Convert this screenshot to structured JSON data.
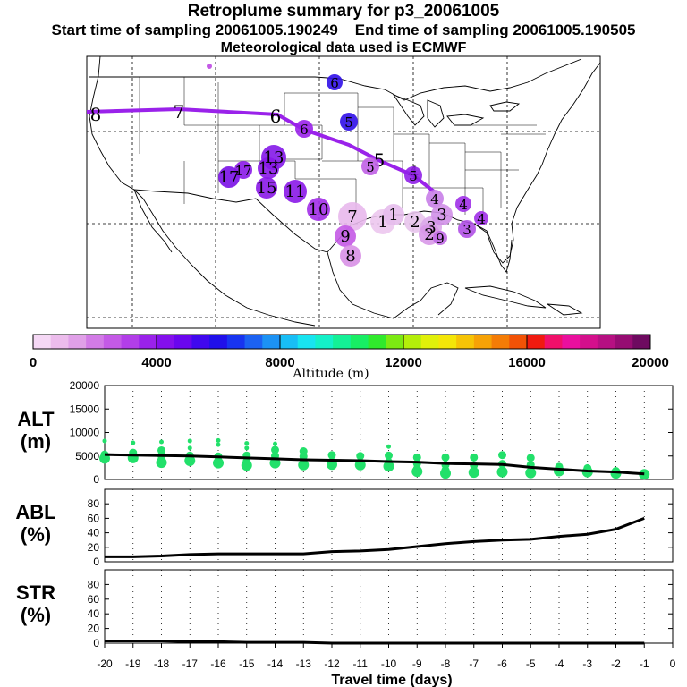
{
  "header": {
    "title": "Retroplume summary for p3_20061005",
    "start_label": "Start time of sampling",
    "start_value": "20061005.190249",
    "end_label": "End time of sampling",
    "end_value": "20061005.190505",
    "met_label": "Meteorological data used is ECMWF"
  },
  "colorbar": {
    "label": "Altitude (m)",
    "ticks": [
      "0",
      "4000",
      "8000",
      "12000",
      "16000",
      "20000"
    ],
    "colors": [
      "#f5d8f5",
      "#ecbcec",
      "#e0a0e8",
      "#d27be6",
      "#c45ae6",
      "#b23ee8",
      "#9a22ea",
      "#8410ec",
      "#6a06ee",
      "#4008ee",
      "#2010ea",
      "#1834f0",
      "#1c62f2",
      "#1c92f4",
      "#18bef6",
      "#18e4f0",
      "#14f0c8",
      "#14f096",
      "#18ee64",
      "#30ea2c",
      "#7cea12",
      "#b4ee0a",
      "#e0f00a",
      "#f4e608",
      "#f6c406",
      "#f6a206",
      "#f47c06",
      "#f25206",
      "#f01a10",
      "#f0106a",
      "#ea109e",
      "#d4108c",
      "#b61082",
      "#960c72",
      "#6e0a60"
    ]
  },
  "map": {
    "trajectory_labels": [
      "1",
      "2",
      "3",
      "4",
      "5",
      "6",
      "7",
      "8"
    ],
    "plume_labels": [
      "1",
      "2",
      "3",
      "4",
      "5",
      "6",
      "7",
      "8",
      "9",
      "10",
      "11",
      "12",
      "13",
      "14",
      "15",
      "16",
      "17"
    ]
  },
  "panels": [
    {
      "name": "ALT",
      "unit": "(m)",
      "yticks": [
        "0",
        "5000",
        "10000",
        "15000",
        "20000"
      ],
      "ymax": 20000
    },
    {
      "name": "ABL",
      "unit": "(%)",
      "yticks": [
        "0",
        "20",
        "40",
        "60",
        "80"
      ],
      "ymax": 100
    },
    {
      "name": "STR",
      "unit": "(%)",
      "yticks": [
        "0",
        "20",
        "40",
        "60",
        "80"
      ],
      "ymax": 100
    }
  ],
  "xaxis": {
    "label": "Travel time (days)",
    "ticks": [
      "-20",
      "-19",
      "-18",
      "-17",
      "-16",
      "-15",
      "-14",
      "-13",
      "-12",
      "-11",
      "-10",
      "-9",
      "-8",
      "-7",
      "-6",
      "-5",
      "-4",
      "-3",
      "-2",
      "-1",
      "0"
    ]
  },
  "chart_data": {
    "type": "line",
    "title": "Retroplume summary for p3_20061005",
    "xlabel": "Travel time (days)",
    "x": [
      -20,
      -19,
      -18,
      -17,
      -16,
      -15,
      -14,
      -13,
      -12,
      -11,
      -10,
      -9,
      -8,
      -7,
      -6,
      -5,
      -4,
      -3,
      -2,
      -1
    ],
    "xlim": [
      -20,
      0
    ],
    "series": [
      {
        "name": "ALT mean (m)",
        "values": [
          5300,
          5200,
          5100,
          5000,
          4800,
          4600,
          4400,
          4200,
          4100,
          4000,
          3800,
          3700,
          3400,
          3300,
          3200,
          2600,
          2200,
          1800,
          1600,
          1200
        ],
        "ylim": [
          0,
          20000
        ]
      },
      {
        "name": "ABL (%)",
        "values": [
          7,
          7,
          8,
          10,
          11,
          11,
          11,
          11,
          14,
          15,
          17,
          21,
          25,
          28,
          30,
          31,
          35,
          38,
          45,
          60
        ],
        "ylim": [
          0,
          100
        ]
      },
      {
        "name": "STR (%)",
        "values": [
          3,
          3,
          3,
          2,
          2,
          1,
          1,
          1,
          0,
          0,
          0,
          0,
          0,
          0,
          0,
          0,
          0,
          0,
          0,
          0
        ],
        "ylim": [
          0,
          100
        ]
      }
    ],
    "alt_scatter": [
      {
        "x": -20,
        "y": [
          8200,
          5300,
          4500
        ]
      },
      {
        "x": -19,
        "y": [
          7800,
          5700,
          4600
        ]
      },
      {
        "x": -18,
        "y": [
          8000,
          6200,
          5100,
          4200,
          3600
        ]
      },
      {
        "x": -17,
        "y": [
          8200,
          6700,
          5100,
          4000
        ]
      },
      {
        "x": -16,
        "y": [
          8300,
          7400,
          4900,
          4000,
          3500
        ]
      },
      {
        "x": -15,
        "y": [
          7700,
          6700,
          5100,
          3800,
          3000
        ]
      },
      {
        "x": -14,
        "y": [
          7600,
          6300,
          5000,
          3500
        ]
      },
      {
        "x": -13,
        "y": [
          6000,
          4900,
          3700,
          3100
        ]
      },
      {
        "x": -12,
        "y": [
          5200,
          3800,
          3200
        ]
      },
      {
        "x": -11,
        "y": [
          5000,
          3700,
          3100
        ]
      },
      {
        "x": -10,
        "y": [
          7000,
          5100,
          3700,
          2800
        ]
      },
      {
        "x": -9,
        "y": [
          4700,
          3400,
          2300,
          1700
        ]
      },
      {
        "x": -8,
        "y": [
          4700,
          3100,
          2000,
          1300
        ]
      },
      {
        "x": -7,
        "y": [
          4700,
          3000,
          1500
        ]
      },
      {
        "x": -6,
        "y": [
          5200,
          3300,
          1600
        ]
      },
      {
        "x": -5,
        "y": [
          4600,
          3100,
          1400
        ]
      },
      {
        "x": -4,
        "y": [
          2700,
          1800
        ]
      },
      {
        "x": -3,
        "y": [
          2400,
          1600
        ]
      },
      {
        "x": -2,
        "y": [
          1800,
          1300
        ]
      },
      {
        "x": -1,
        "y": [
          1300,
          1100
        ]
      }
    ]
  }
}
